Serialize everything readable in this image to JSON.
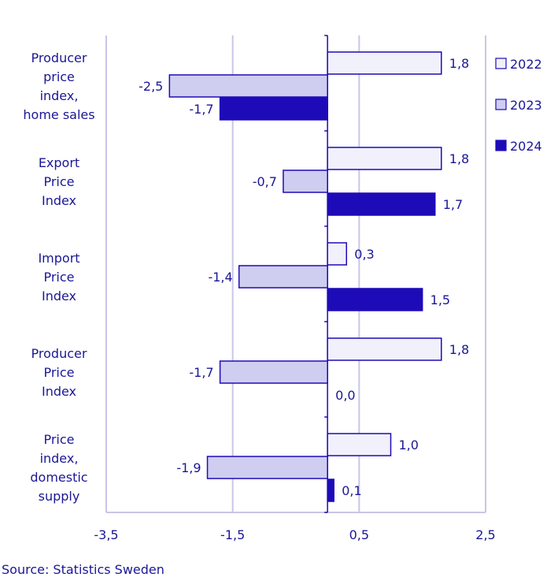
{
  "chart_data": {
    "type": "bar",
    "orientation": "horizontal",
    "categories": [
      "Producer price index, home sales",
      "Export Price Index",
      "Import Price Index",
      "Producer Price Index",
      "Price index, domestic supply"
    ],
    "category_lines": [
      [
        "Producer",
        "price",
        "index,",
        "home sales"
      ],
      [
        "Export",
        "Price",
        "Index"
      ],
      [
        "Import",
        "Price",
        "Index"
      ],
      [
        "Producer",
        "Price",
        "Index"
      ],
      [
        "Price",
        "index,",
        "domestic",
        "supply"
      ]
    ],
    "series": [
      {
        "name": "2022",
        "values": [
          1.8,
          1.8,
          0.3,
          1.8,
          1.0
        ],
        "labels": [
          "1,8",
          "1,8",
          "0,3",
          "1,8",
          "1,0"
        ],
        "color": "#f1f0fb"
      },
      {
        "name": "2023",
        "values": [
          -2.5,
          -0.7,
          -1.4,
          -1.7,
          -1.9
        ],
        "labels": [
          "-2,5",
          "-0,7",
          "-1,4",
          "-1,7",
          "-1,9"
        ],
        "color": "#cfcdf0"
      },
      {
        "name": "2024",
        "values": [
          -1.7,
          1.7,
          1.5,
          0.0,
          0.1
        ],
        "labels": [
          "-1,7",
          "1,7",
          "1,5",
          "0,0",
          "0,1"
        ],
        "color": "#1e0bb8"
      }
    ],
    "xlim": [
      -3.5,
      2.5
    ],
    "xticks": [
      -3.5,
      -1.5,
      0.5,
      2.5
    ],
    "xtick_labels": [
      "-3,5",
      "-1,5",
      "0,5",
      "2,5"
    ],
    "grid": true,
    "legend_position": "top-right",
    "source": "Source: Statistics Sweden"
  },
  "colors": {
    "text": "#1b1796",
    "edge": "#1e0bb8",
    "grid": "#c8c6e8"
  }
}
